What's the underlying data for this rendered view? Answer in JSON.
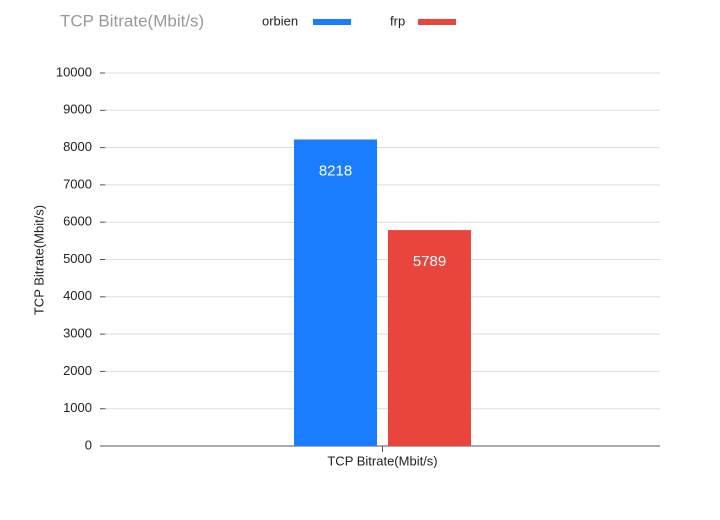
{
  "chart_data": {
    "type": "bar",
    "title": "TCP Bitrate(Mbit/s)",
    "y_label": "TCP Bitrate(Mbit/s)",
    "categories": [
      "TCP Bitrate(Mbit/s)"
    ],
    "series": [
      {
        "name": "orbien",
        "color": "#1a7cff",
        "values": [
          8218
        ]
      },
      {
        "name": "frp",
        "color": "#e8453c",
        "values": [
          5789
        ]
      }
    ],
    "ylim": [
      0,
      10000
    ],
    "yticks": [
      0,
      1000,
      2000,
      3000,
      4000,
      5000,
      6000,
      7000,
      8000,
      9000,
      10000
    ],
    "grid": true
  }
}
